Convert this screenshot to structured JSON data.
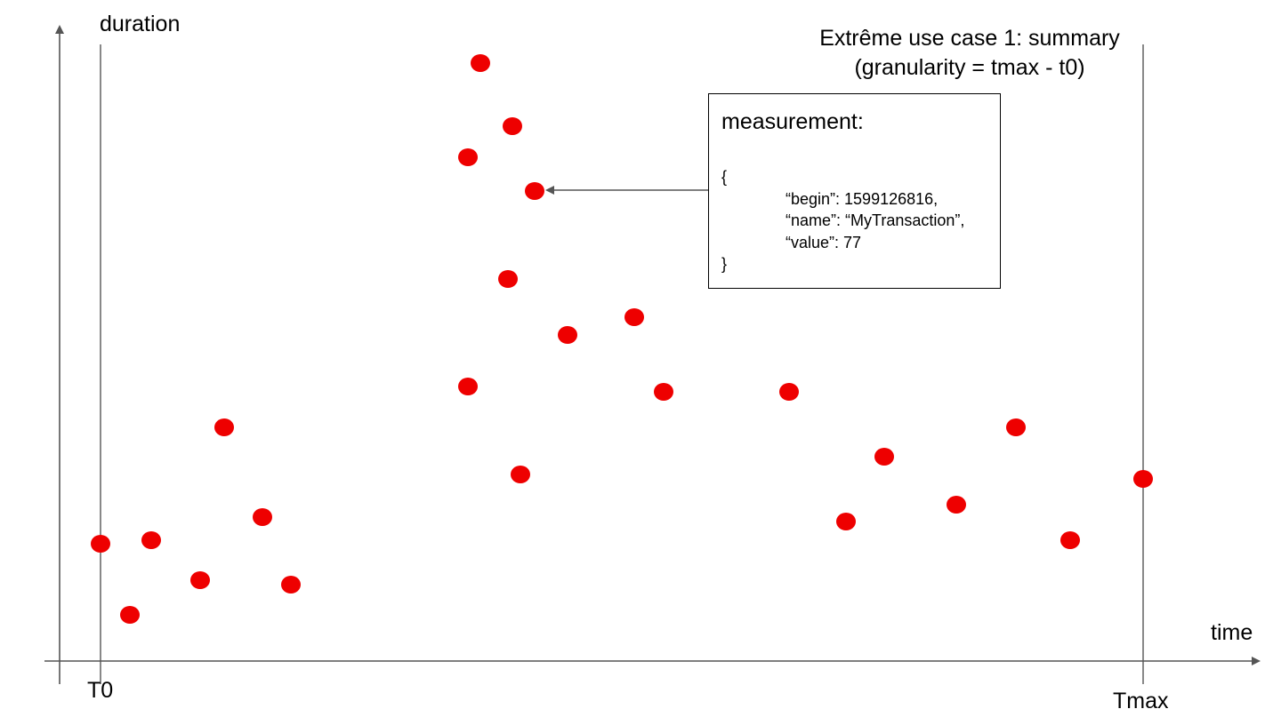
{
  "labels": {
    "y_axis": "duration",
    "x_axis": "time",
    "t0": "T0",
    "tmax": "Tmax"
  },
  "title": {
    "line1": "Extrême use case 1: summary",
    "line2": "(granularity = tmax - t0)"
  },
  "measurement_box": {
    "heading": "measurement:",
    "open_brace": "{",
    "begin_line": "“begin”: 1599126816,",
    "name_line": "“name”: “MyTransaction”,",
    "value_line": "“value”: 77",
    "close_brace": "}"
  },
  "colors": {
    "point": "#ee0000",
    "axis": "#555555",
    "line": "#555555"
  }
}
